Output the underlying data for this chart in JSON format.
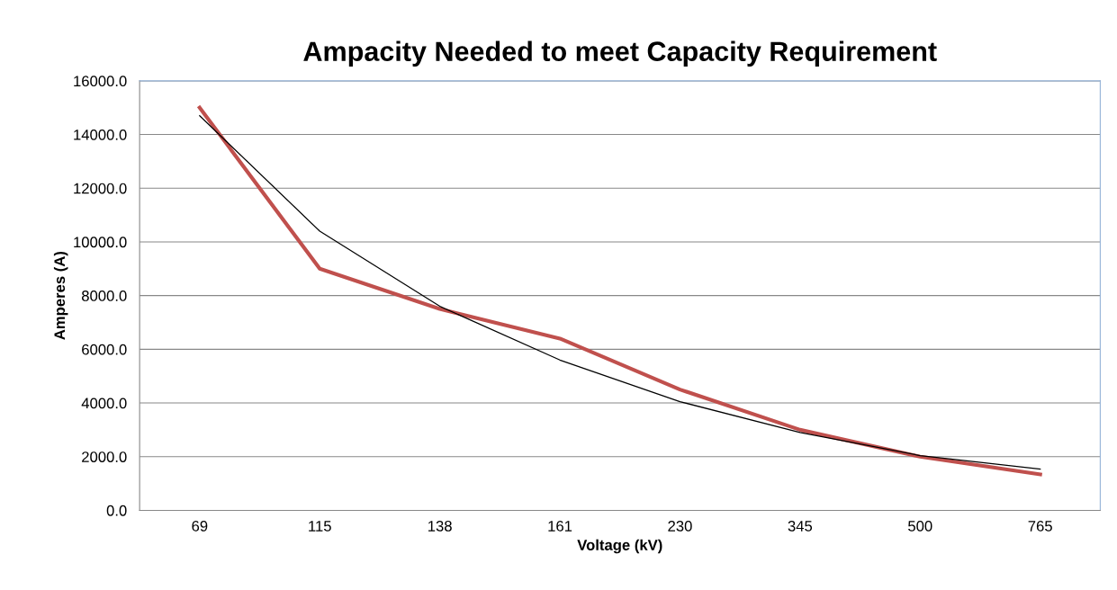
{
  "chart_data": {
    "type": "line",
    "title": "Ampacity Needed to meet Capacity Requirement",
    "xlabel": "Voltage (kV)",
    "ylabel": "Amperes (A)",
    "categories": [
      "69",
      "115",
      "138",
      "161",
      "230",
      "345",
      "500",
      "765"
    ],
    "series": [
      {
        "color": "#c0504d",
        "values": [
          15000,
          9000,
          7500,
          6400,
          4500,
          3000,
          2000,
          1340
        ]
      },
      {
        "color": "#000000",
        "values": [
          14700,
          10400,
          7600,
          5600,
          4050,
          2900,
          2040,
          1540
        ]
      }
    ],
    "ylim": [
      0,
      16000
    ],
    "yticks": [
      {
        "value": 0,
        "label": "0.0"
      },
      {
        "value": 2000,
        "label": "2000.0"
      },
      {
        "value": 4000,
        "label": "4000.0"
      },
      {
        "value": 6000,
        "label": "6000.0"
      },
      {
        "value": 8000,
        "label": "8000.0"
      },
      {
        "value": 10000,
        "label": "10000.0"
      },
      {
        "value": 12000,
        "label": "12000.0"
      },
      {
        "value": 14000,
        "label": "14000.0"
      },
      {
        "value": 16000,
        "label": "16000.0"
      }
    ],
    "grid": "y",
    "legend": false,
    "marker": "none",
    "line_style": "solid"
  }
}
